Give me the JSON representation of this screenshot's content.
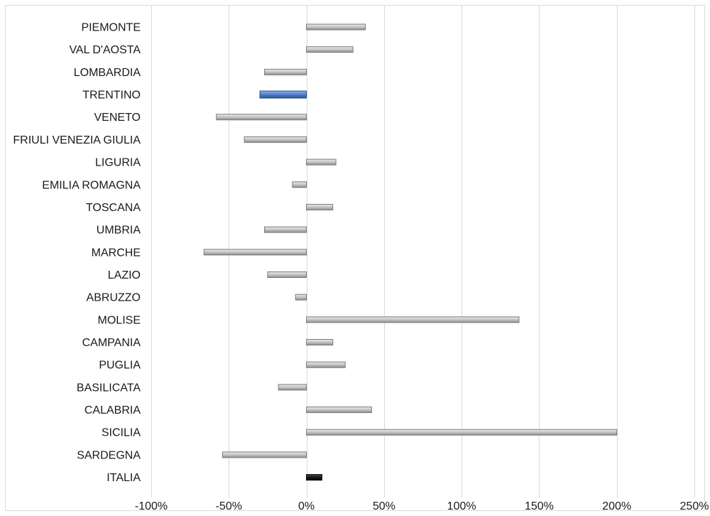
{
  "chart_data": {
    "type": "bar",
    "orientation": "horizontal",
    "title": "",
    "xlabel": "",
    "ylabel": "",
    "xlim": [
      -100,
      250
    ],
    "x_ticks": [
      -100,
      -50,
      0,
      50,
      100,
      150,
      200,
      250
    ],
    "x_tick_labels": [
      "-100%",
      "-50%",
      "0%",
      "50%",
      "100%",
      "150%",
      "200%",
      "250%"
    ],
    "grid": "vertical",
    "legend": "none",
    "categories": [
      "PIEMONTE",
      "VAL D'AOSTA",
      "LOMBARDIA",
      "TRENTINO",
      "VENETO",
      "FRIULI VENEZIA GIULIA",
      "LIGURIA",
      "EMILIA ROMAGNA",
      "TOSCANA",
      "UMBRIA",
      "MARCHE",
      "LAZIO",
      "ABRUZZO",
      "MOLISE",
      "CAMPANIA",
      "PUGLIA",
      "BASILICATA",
      "CALABRIA",
      "SICILIA",
      "SARDEGNA",
      "ITALIA"
    ],
    "values": [
      38,
      30,
      -27,
      -30,
      -58,
      -40,
      19,
      -9,
      17,
      -27,
      -66,
      -25,
      -7,
      137,
      17,
      25,
      -18,
      42,
      200,
      -54,
      10
    ],
    "unit": "%",
    "colors": {
      "default": "#c8c8c8",
      "default_edge": "#7a7a7a",
      "highlight": "#4f7fc9",
      "highlight_edge": "#2b4f8a",
      "total": "#1a1a1a",
      "total_edge": "#000000",
      "grid": "#d9d9d9",
      "frame": "#d9d9d9"
    },
    "highlight_categories": [
      "TRENTINO"
    ],
    "total_categories": [
      "ITALIA"
    ]
  }
}
